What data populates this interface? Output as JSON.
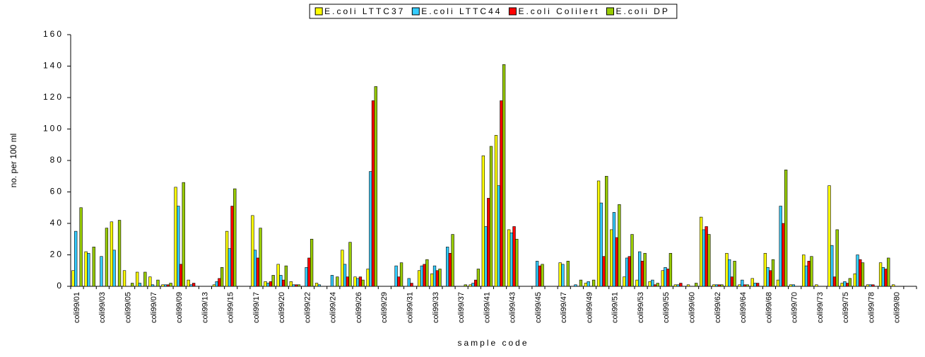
{
  "chart_data": {
    "type": "bar",
    "x_label": "sample code",
    "y_label": "no. per 100 ml",
    "ylim": [
      0,
      160
    ],
    "yticks": [
      0,
      20,
      40,
      60,
      80,
      100,
      120,
      140,
      160
    ],
    "grid": false,
    "legend": "top",
    "categories": [
      "coli99/01",
      null,
      "coli99/03",
      null,
      "coli99/05",
      null,
      "coli99/07",
      null,
      "coli99/09",
      null,
      "coli99/13",
      null,
      "coli99/15",
      null,
      "coli99/17",
      null,
      "coli99/20",
      null,
      "coli99/22",
      null,
      "coli99/24",
      null,
      "coli99/26",
      null,
      "coli99/29",
      null,
      "coli99/31",
      null,
      "coli99/33",
      null,
      "coli99/37",
      null,
      "coli99/41",
      null,
      "coli99/43",
      null,
      "coli99/45",
      null,
      "coli99/47",
      null,
      "coli99/49",
      null,
      "coli99/51",
      null,
      "coli99/53",
      null,
      "coli99/55",
      null,
      "coli99/60",
      null,
      "coli99/62",
      null,
      "coli99/64",
      null,
      "coli99/68",
      null,
      "coli99/70",
      null,
      "coli99/73",
      null,
      "coli99/75",
      null,
      "coli99/78",
      null,
      "coli99/80",
      null
    ],
    "series": [
      {
        "name": "E.coli LTTC37",
        "color": "#ffff00",
        "values": [
          10,
          22,
          0,
          41,
          10,
          9,
          6,
          1,
          63,
          4,
          0,
          1,
          35,
          0,
          45,
          3,
          14,
          3,
          0,
          2,
          0,
          23,
          6,
          11,
          0,
          0,
          0,
          10,
          8,
          0,
          0,
          1,
          83,
          96,
          36,
          0,
          0,
          0,
          15,
          0,
          2,
          67,
          36,
          6,
          4,
          3,
          10,
          1,
          1,
          44,
          1,
          21,
          1,
          5,
          21,
          4,
          1,
          20,
          1,
          64,
          2,
          8,
          1,
          15,
          1,
          0
        ]
      },
      {
        "name": "E.coli LTTC44",
        "color": "#33ccff",
        "values": [
          35,
          21,
          19,
          23,
          0,
          2,
          1,
          1,
          51,
          1,
          0,
          3,
          24,
          0,
          23,
          2,
          7,
          1,
          12,
          1,
          7,
          14,
          5,
          73,
          0,
          13,
          5,
          13,
          13,
          25,
          0,
          2,
          38,
          64,
          34,
          0,
          16,
          0,
          14,
          1,
          3,
          53,
          47,
          18,
          22,
          4,
          12,
          1,
          0,
          36,
          1,
          17,
          4,
          2,
          12,
          51,
          1,
          13,
          0,
          26,
          3,
          20,
          1,
          12,
          0,
          0
        ]
      },
      {
        "name": "E.coli Colilert",
        "color": "#ff0000",
        "values": [
          0,
          0,
          0,
          0,
          0,
          0,
          0,
          1,
          14,
          2,
          0,
          5,
          51,
          0,
          18,
          3,
          4,
          1,
          18,
          0,
          0,
          6,
          6,
          118,
          0,
          6,
          2,
          14,
          10,
          21,
          0,
          4,
          56,
          118,
          38,
          0,
          13,
          0,
          0,
          0,
          0,
          19,
          31,
          19,
          16,
          1,
          11,
          2,
          0,
          38,
          1,
          6,
          1,
          2,
          10,
          40,
          0,
          16,
          0,
          6,
          2,
          17,
          1,
          11,
          0,
          0
        ]
      },
      {
        "name": "E.coli DP",
        "color": "#99cc00",
        "values": [
          50,
          25,
          37,
          42,
          2,
          9,
          4,
          2,
          66,
          0,
          0,
          12,
          62,
          0,
          37,
          7,
          13,
          1,
          30,
          0,
          6,
          28,
          4,
          127,
          0,
          15,
          0,
          17,
          11,
          33,
          1,
          11,
          89,
          141,
          30,
          0,
          14,
          0,
          16,
          4,
          4,
          70,
          52,
          33,
          21,
          2,
          21,
          0,
          2,
          33,
          1,
          16,
          1,
          0,
          17,
          74,
          0,
          19,
          0,
          36,
          5,
          15,
          0,
          18,
          0,
          0
        ]
      }
    ]
  }
}
